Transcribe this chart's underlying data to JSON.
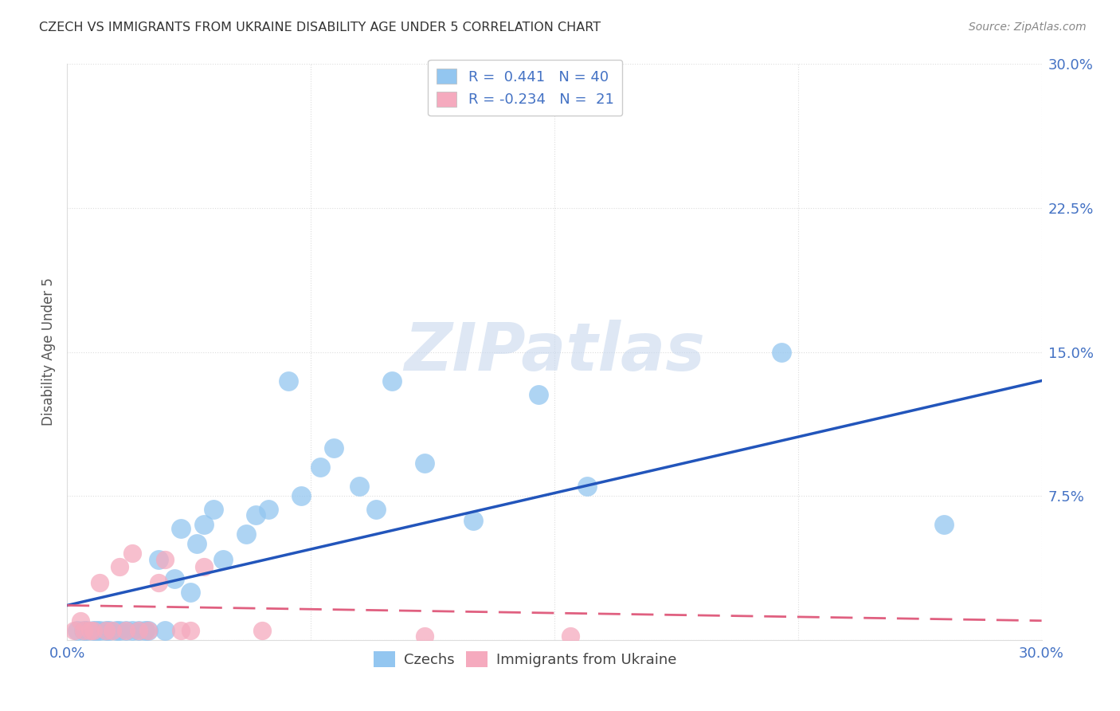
{
  "title": "CZECH VS IMMIGRANTS FROM UKRAINE DISABILITY AGE UNDER 5 CORRELATION CHART",
  "source": "Source: ZipAtlas.com",
  "ylabel": "Disability Age Under 5",
  "xlim": [
    0.0,
    0.3
  ],
  "ylim": [
    0.0,
    0.3
  ],
  "xtick_vals": [
    0.0,
    0.075,
    0.15,
    0.225,
    0.3
  ],
  "ytick_vals": [
    0.0,
    0.075,
    0.15,
    0.225,
    0.3
  ],
  "xticklabels": [
    "0.0%",
    "",
    "",
    "",
    "30.0%"
  ],
  "yticklabels": [
    "",
    "7.5%",
    "15.0%",
    "22.5%",
    "30.0%"
  ],
  "czechs_color": "#93C6F0",
  "ukraine_color": "#F5AABE",
  "czechs_R": 0.441,
  "czechs_N": 40,
  "ukraine_R": -0.234,
  "ukraine_N": 21,
  "czechs_line_color": "#2255BB",
  "ukraine_line_color": "#E06080",
  "watermark": "ZIPatlas",
  "czechs_x": [
    0.003,
    0.005,
    0.006,
    0.008,
    0.009,
    0.01,
    0.012,
    0.013,
    0.015,
    0.016,
    0.018,
    0.02,
    0.022,
    0.024,
    0.025,
    0.028,
    0.03,
    0.033,
    0.035,
    0.038,
    0.04,
    0.042,
    0.045,
    0.048,
    0.055,
    0.058,
    0.062,
    0.068,
    0.072,
    0.078,
    0.082,
    0.09,
    0.095,
    0.1,
    0.11,
    0.125,
    0.145,
    0.16,
    0.22,
    0.27
  ],
  "czechs_y": [
    0.005,
    0.005,
    0.005,
    0.005,
    0.005,
    0.005,
    0.005,
    0.005,
    0.005,
    0.005,
    0.005,
    0.005,
    0.005,
    0.005,
    0.005,
    0.042,
    0.005,
    0.032,
    0.058,
    0.025,
    0.05,
    0.06,
    0.068,
    0.042,
    0.055,
    0.065,
    0.068,
    0.135,
    0.075,
    0.09,
    0.1,
    0.08,
    0.068,
    0.135,
    0.092,
    0.062,
    0.128,
    0.08,
    0.15,
    0.06
  ],
  "ukraine_x": [
    0.002,
    0.004,
    0.005,
    0.007,
    0.008,
    0.01,
    0.012,
    0.014,
    0.016,
    0.018,
    0.02,
    0.022,
    0.025,
    0.028,
    0.03,
    0.035,
    0.038,
    0.042,
    0.06,
    0.11,
    0.155
  ],
  "ukraine_y": [
    0.005,
    0.01,
    0.005,
    0.005,
    0.005,
    0.03,
    0.005,
    0.005,
    0.038,
    0.005,
    0.045,
    0.005,
    0.005,
    0.03,
    0.042,
    0.005,
    0.005,
    0.038,
    0.005,
    0.002,
    0.002
  ],
  "background_color": "#FFFFFF",
  "grid_color": "#DDDDDD",
  "tick_color": "#4472C4",
  "title_color": "#333333",
  "source_color": "#888888",
  "ylabel_color": "#555555"
}
